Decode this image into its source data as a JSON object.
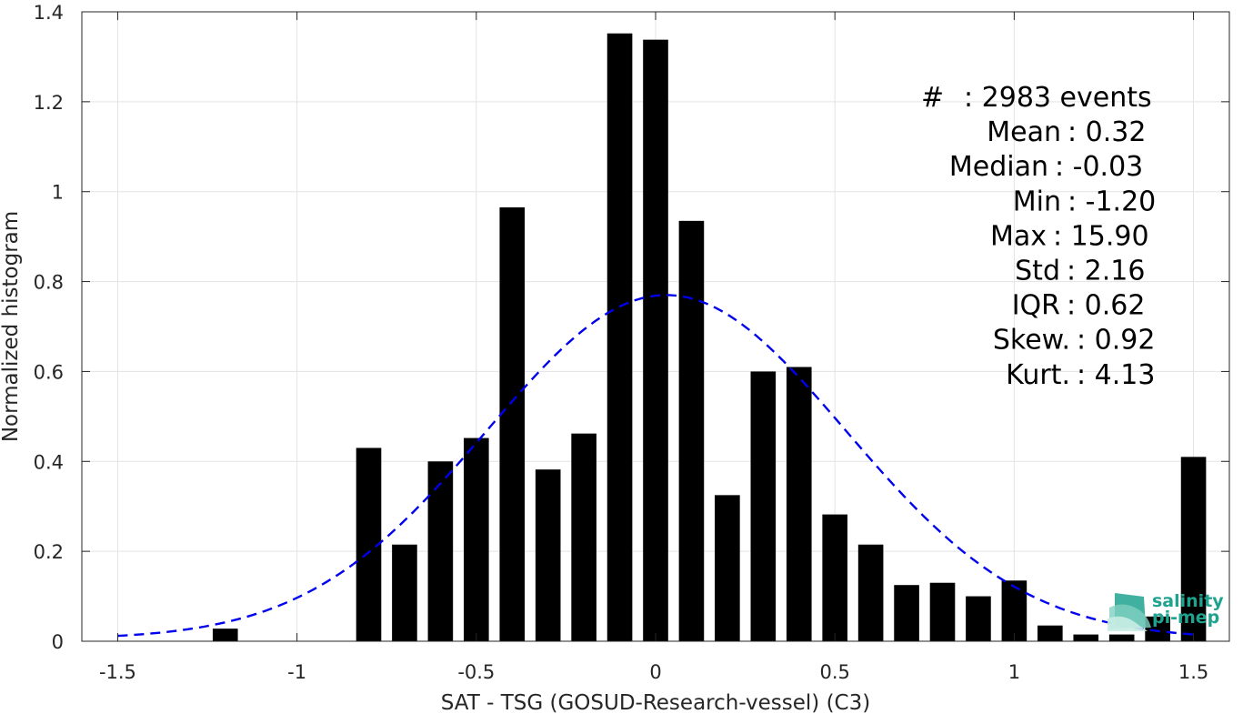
{
  "chart_data": {
    "type": "bar",
    "xlabel": "SAT - TSG (GOSUD-Research-vessel) (C3)",
    "ylabel": "Normalized histogram",
    "xlim": [
      -1.6,
      1.6
    ],
    "ylim": [
      0,
      1.4
    ],
    "xticks": [
      -1.5,
      -1,
      -0.5,
      0,
      0.5,
      1,
      1.5
    ],
    "xtick_labels": [
      "-1.5",
      "-1",
      "-0.5",
      "0",
      "0.5",
      "1",
      "1.5"
    ],
    "yticks": [
      0,
      0.2,
      0.4,
      0.6,
      0.8,
      1,
      1.2,
      1.4
    ],
    "ytick_labels": [
      "0",
      "0.2",
      "0.4",
      "0.6",
      "0.8",
      "1",
      "1.2",
      "1.4"
    ],
    "grid": true,
    "bar_width": 0.07,
    "bars": [
      {
        "x": -1.2,
        "y": 0.028
      },
      {
        "x": -0.8,
        "y": 0.43
      },
      {
        "x": -0.7,
        "y": 0.215
      },
      {
        "x": -0.6,
        "y": 0.4
      },
      {
        "x": -0.5,
        "y": 0.452
      },
      {
        "x": -0.4,
        "y": 0.965
      },
      {
        "x": -0.3,
        "y": 0.382
      },
      {
        "x": -0.2,
        "y": 0.462
      },
      {
        "x": -0.1,
        "y": 1.352
      },
      {
        "x": 0.0,
        "y": 1.338
      },
      {
        "x": 0.1,
        "y": 0.935
      },
      {
        "x": 0.2,
        "y": 0.325
      },
      {
        "x": 0.3,
        "y": 0.6
      },
      {
        "x": 0.4,
        "y": 0.61
      },
      {
        "x": 0.5,
        "y": 0.282
      },
      {
        "x": 0.6,
        "y": 0.215
      },
      {
        "x": 0.7,
        "y": 0.125
      },
      {
        "x": 0.8,
        "y": 0.13
      },
      {
        "x": 0.9,
        "y": 0.1
      },
      {
        "x": 1.0,
        "y": 0.135
      },
      {
        "x": 1.1,
        "y": 0.035
      },
      {
        "x": 1.2,
        "y": 0.015
      },
      {
        "x": 1.3,
        "y": 0.015
      },
      {
        "x": 1.4,
        "y": 0.055
      },
      {
        "x": 1.5,
        "y": 0.41
      }
    ],
    "fit_curve": {
      "style": "dashed",
      "color": "#0000ee",
      "x_range": [
        -1.5,
        1.5
      ],
      "peak_x": 0.03,
      "peak_y": 0.77,
      "sigma": 0.5,
      "end_y": 0.012
    },
    "bar_color": "#000000",
    "stats": [
      {
        "label": "#",
        "sep": ": 2983 events"
      },
      {
        "label": "Mean",
        "sep": ": 0.32"
      },
      {
        "label": "Median",
        "sep": ": -0.03"
      },
      {
        "label": "Min",
        "sep": ": -1.20"
      },
      {
        "label": "Max",
        "sep": ": 15.90"
      },
      {
        "label": "Std",
        "sep": ": 2.16"
      },
      {
        "label": "IQR",
        "sep": ": 0.62"
      },
      {
        "label": "Skew.",
        "sep": ": 0.92"
      },
      {
        "label": "Kurt.",
        "sep": ": 4.13"
      }
    ]
  },
  "logo": {
    "line1": "salinity",
    "line2": "pi-mep",
    "color": "#1fa38f"
  }
}
